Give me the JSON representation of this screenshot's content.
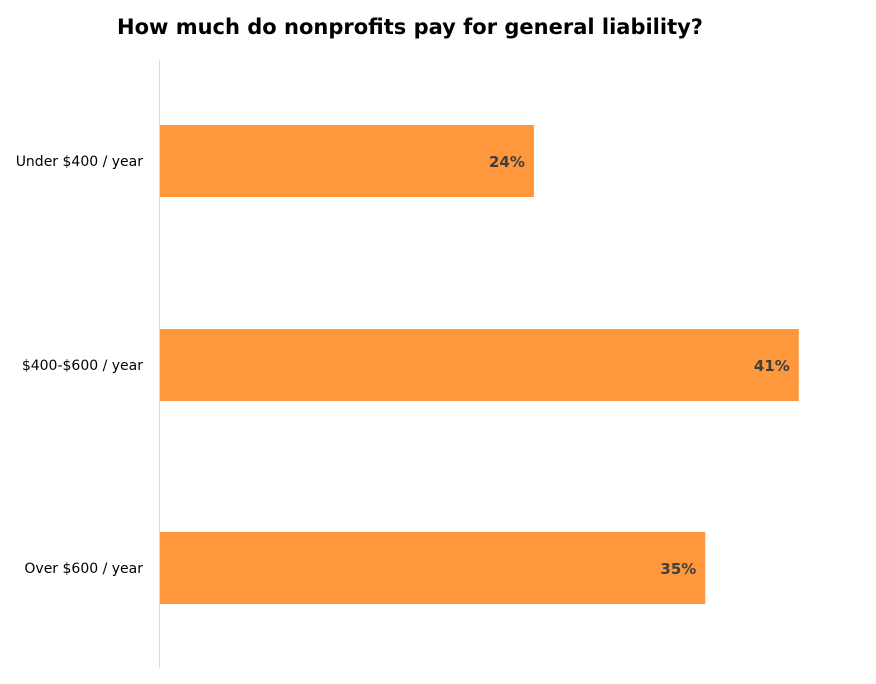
{
  "chart_data": {
    "type": "bar",
    "orientation": "horizontal",
    "title": "How much do nonprofits pay for general liability?",
    "categories": [
      "Under $400 / year",
      "$400-$600 / year",
      "Over $600 / year"
    ],
    "values": [
      24,
      41,
      35
    ],
    "data_labels": [
      "24%",
      "41%",
      "35%"
    ],
    "unit": "%",
    "xlim": [
      0,
      46
    ],
    "grid": false,
    "legend": "none",
    "colors": {
      "bar": "#FF983D",
      "label": "#3f3f3f",
      "axis": "#d9d9d9"
    }
  }
}
